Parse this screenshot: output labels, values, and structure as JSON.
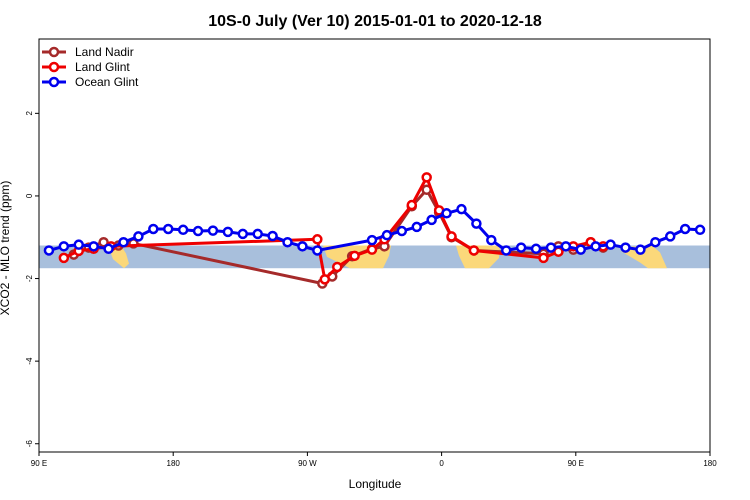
{
  "chart_data": {
    "type": "line",
    "title": "10S-0 July (Ver 10)   2015-01-01 to 2020-12-18",
    "xlabel": "Longitude",
    "ylabel": "XCO2 - MLO trend (ppm)",
    "xlim": [
      -90,
      180
    ],
    "ylim": [
      -6.2,
      3.8
    ],
    "x_ticks": [
      {
        "value": -90,
        "label": "90 E"
      },
      {
        "value": -36,
        "label": "180"
      },
      {
        "value": 18,
        "label": "90 W"
      },
      {
        "value": 72,
        "label": "0"
      },
      {
        "value": 126,
        "label": "90 E"
      },
      {
        "value": 180,
        "label": "180"
      }
    ],
    "y_ticks": [
      -6,
      -4,
      -2,
      0,
      2
    ],
    "grid": false,
    "legend_position": "top-left",
    "band": {
      "y_range": [
        -1.75,
        -1.2
      ],
      "color": "#a8bfdc",
      "land_color": "#fbd87a"
    },
    "series": [
      {
        "name": "Land Nadir",
        "color": "#a52a2a",
        "x": [
          -76,
          -70,
          -64,
          -58,
          -52,
          24,
          28,
          36,
          44,
          49,
          60,
          66,
          71,
          76,
          85,
          113,
          119,
          125,
          132,
          137
        ],
        "y": [
          -1.42,
          -1.25,
          -1.12,
          -1.2,
          -1.15,
          -2.12,
          -1.95,
          -1.46,
          -1.28,
          -1.22,
          -0.25,
          0.15,
          -0.4,
          -1.0,
          -1.32,
          -1.4,
          -1.22,
          -1.3,
          -1.12,
          -1.25
        ]
      },
      {
        "name": "Land Glint",
        "color": "#ee0000",
        "x": [
          -80,
          -74,
          -68,
          -61,
          22,
          25,
          30,
          37,
          44,
          49,
          60,
          66,
          71,
          76,
          85,
          113,
          119,
          125,
          132,
          137
        ],
        "y": [
          -1.5,
          -1.33,
          -1.28,
          -1.22,
          -1.05,
          -2.02,
          -1.72,
          -1.45,
          -1.3,
          -1.05,
          -0.22,
          0.45,
          -0.35,
          -0.98,
          -1.32,
          -1.5,
          -1.35,
          -1.22,
          -1.12,
          -1.22
        ]
      },
      {
        "name": "Ocean Glint",
        "color": "#0000ee",
        "x": [
          -86,
          -80,
          -74,
          -68,
          -62,
          -56,
          -50,
          -44,
          -38,
          -32,
          -26,
          -20,
          -14,
          -8,
          -2,
          4,
          10,
          16,
          22,
          44,
          50,
          56,
          62,
          68,
          74,
          80,
          86,
          92,
          98,
          104,
          110,
          116,
          122,
          128,
          134,
          140,
          146,
          152,
          158,
          164,
          170,
          176
        ],
        "y": [
          -1.32,
          -1.22,
          -1.18,
          -1.22,
          -1.28,
          -1.12,
          -0.98,
          -0.8,
          -0.8,
          -0.82,
          -0.85,
          -0.84,
          -0.87,
          -0.92,
          -0.92,
          -0.97,
          -1.12,
          -1.22,
          -1.32,
          -1.07,
          -0.95,
          -0.85,
          -0.75,
          -0.58,
          -0.42,
          -0.32,
          -0.67,
          -1.07,
          -1.32,
          -1.25,
          -1.28,
          -1.25,
          -1.22,
          -1.3,
          -1.22,
          -1.18,
          -1.25,
          -1.3,
          -1.12,
          -0.98,
          -0.8,
          -0.82
        ]
      }
    ]
  }
}
